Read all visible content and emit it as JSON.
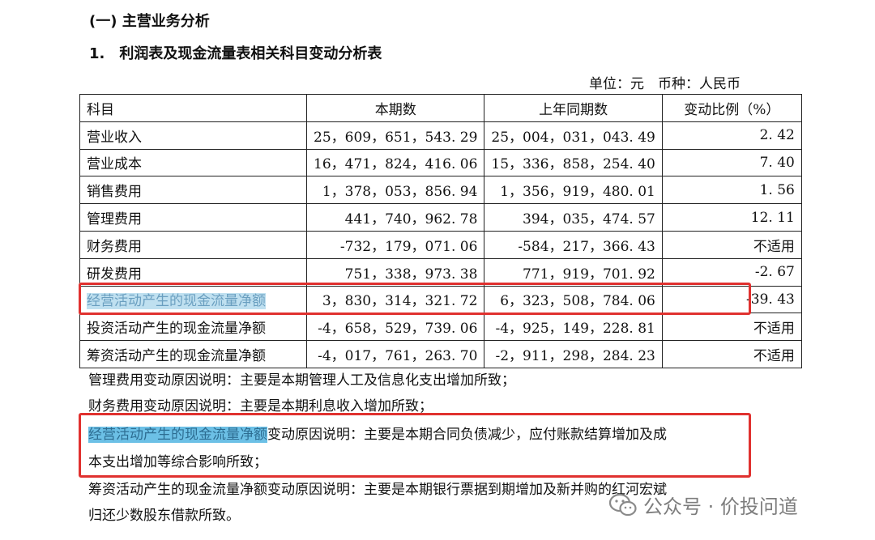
{
  "section_title": "(一) 主营业务分析",
  "subsection_title": "1.　利润表及现金流量表相关科目变动分析表",
  "unit_line": "单位：元　币种：人民币",
  "table": {
    "headers": [
      "科目",
      "本期数",
      "上年同期数",
      "变动比例（%）"
    ],
    "rows": [
      [
        "营业收入",
        "25，609，651，543. 29",
        "25，004，031，043. 49",
        "2. 42"
      ],
      [
        "营业成本",
        "16，471，824，416. 06",
        "15，336，858，254. 40",
        "7. 40"
      ],
      [
        "销售费用",
        "1，378，053，856. 94",
        "1，356，919，480. 01",
        "1. 56"
      ],
      [
        "管理费用",
        "441，740，962. 78",
        "394，035，474. 57",
        "12. 11"
      ],
      [
        "财务费用",
        "-732，179，071. 06",
        "-584，217，366. 43",
        "不适用"
      ],
      [
        "研发费用",
        "751，338，973. 38",
        "771，919，701. 92",
        "-2. 67"
      ],
      [
        "经营活动产生的现金流量净额",
        "3，830，314，321. 72",
        "6，323，508，784. 06",
        "-39. 43"
      ],
      [
        "投资活动产生的现金流量净额",
        "-4，658，529，739. 06",
        "-4，925，149，228. 81",
        "不适用"
      ],
      [
        "筹资活动产生的现金流量净额",
        "-4，017，761，263. 70",
        "-2，911，298，284. 23",
        "不适用"
      ]
    ]
  },
  "notes": {
    "n1": "管理费用变动原因说明：主要是本期管理人工及信息化支出增加所致；",
    "n2": "财务费用变动原因说明：主要是本期利息收入增加所致；",
    "n3_label": "经营活动产生的现金流量净额",
    "n3_rest": "变动原因说明：主要是本期合同负债减少，应付账款结算增加及成",
    "n3_line2": "本支出增加等综合影响所致；",
    "n4_line1": "筹资活动产生的现金流量净额变动原因说明：主要是本期银行票据到期增加及新并购的红河宏斌",
    "n4_line2": "归还少数股东借款所致。"
  },
  "watermark": {
    "icon": "wechat-icon",
    "text": "公众号 · 价投问道"
  },
  "colors": {
    "highlight_box": "#e0312f",
    "text_highlight_light": "#bfe0f0",
    "text_highlight_strong": "#6cc0e6"
  }
}
